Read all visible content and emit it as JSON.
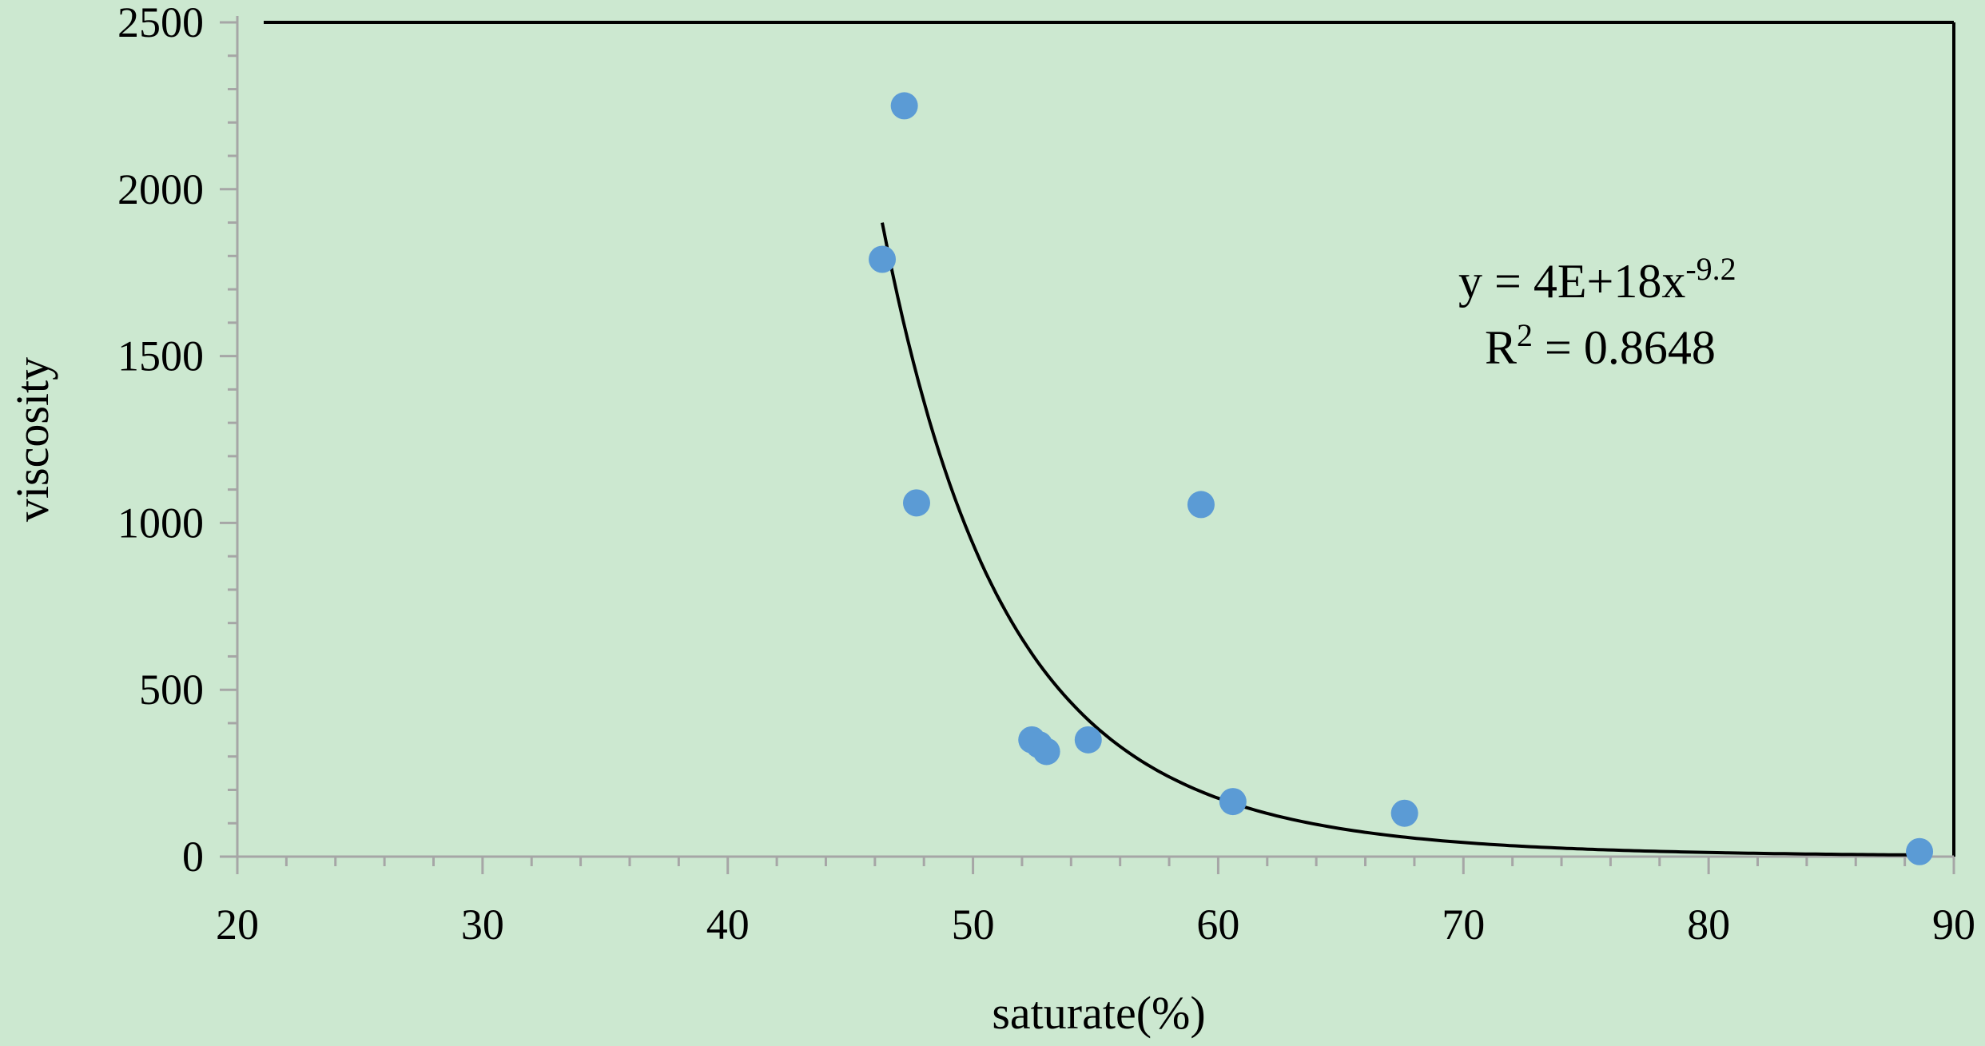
{
  "chart_data": {
    "type": "scatter",
    "xlabel": "saturate(%)",
    "ylabel": "viscosity",
    "xlim": [
      20,
      90
    ],
    "ylim": [
      0,
      2500
    ],
    "xticks": [
      20,
      30,
      40,
      50,
      60,
      70,
      80,
      90
    ],
    "yticks": [
      0,
      500,
      1000,
      1500,
      2000,
      2500
    ],
    "grid": false,
    "colors": {
      "background": "#cce8d0",
      "point": "#5b9bd5",
      "trendline": "#000000",
      "axis": "#a6a6a6"
    },
    "points": [
      {
        "x": 46.3,
        "y": 1790
      },
      {
        "x": 47.2,
        "y": 2250
      },
      {
        "x": 47.7,
        "y": 1060
      },
      {
        "x": 52.4,
        "y": 350
      },
      {
        "x": 52.7,
        "y": 335
      },
      {
        "x": 53.0,
        "y": 315
      },
      {
        "x": 54.7,
        "y": 350
      },
      {
        "x": 59.3,
        "y": 1055
      },
      {
        "x": 60.6,
        "y": 165
      },
      {
        "x": 67.6,
        "y": 130
      },
      {
        "x": 88.6,
        "y": 15
      }
    ],
    "trendline": {
      "type": "power",
      "coefficient": 4e+18,
      "exponent": -9.2,
      "x_range": [
        46.3,
        88.6
      ],
      "equation_label": {
        "lhs": "y = 4E+18x",
        "exponent": "-9.2"
      },
      "r2_label": {
        "prefix": "R",
        "sup": "2",
        "suffix": " = 0.8648"
      }
    }
  }
}
